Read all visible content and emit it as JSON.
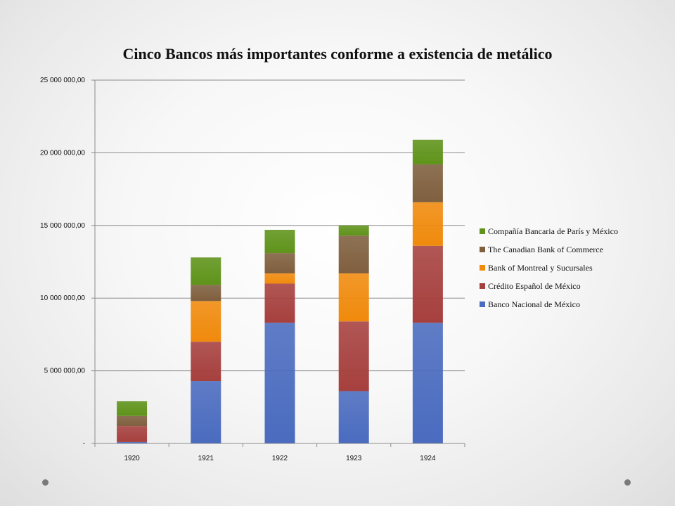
{
  "chart_data": {
    "type": "bar",
    "stacked": true,
    "title": "Cinco Bancos más importantes conforme a existencia de metálico",
    "xlabel": "",
    "ylabel": "",
    "categories": [
      "1920",
      "1921",
      "1922",
      "1923",
      "1924"
    ],
    "ylim": [
      0,
      25000000
    ],
    "yticks": [
      0,
      5000000,
      10000000,
      15000000,
      20000000,
      25000000
    ],
    "ytick_labels": [
      "-",
      "5 000 000,00",
      "10 000 000,00",
      "15 000 000,00",
      "20 000 000,00",
      "25 000 000,00"
    ],
    "grid": true,
    "legend_position": "right",
    "series": [
      {
        "name": "Banco Nacional de México",
        "color": "#4a6bbf",
        "values": [
          100000,
          4300000,
          8300000,
          3600000,
          8300000
        ]
      },
      {
        "name": "Crédito Español de México",
        "color": "#a6403e",
        "values": [
          1100000,
          2700000,
          2700000,
          4800000,
          5300000
        ]
      },
      {
        "name": "Bank of Montreal y Sucursales",
        "color": "#f08a0c",
        "values": [
          0,
          2800000,
          700000,
          3300000,
          3000000
        ]
      },
      {
        "name": "The Canadian Bank of Commerce",
        "color": "#7f5f3e",
        "values": [
          700000,
          1100000,
          1400000,
          2600000,
          2600000
        ]
      },
      {
        "name": "Compañía Bancaria de París y México",
        "color": "#5f931a",
        "values": [
          1000000,
          1900000,
          1600000,
          700000,
          1700000
        ]
      }
    ]
  }
}
